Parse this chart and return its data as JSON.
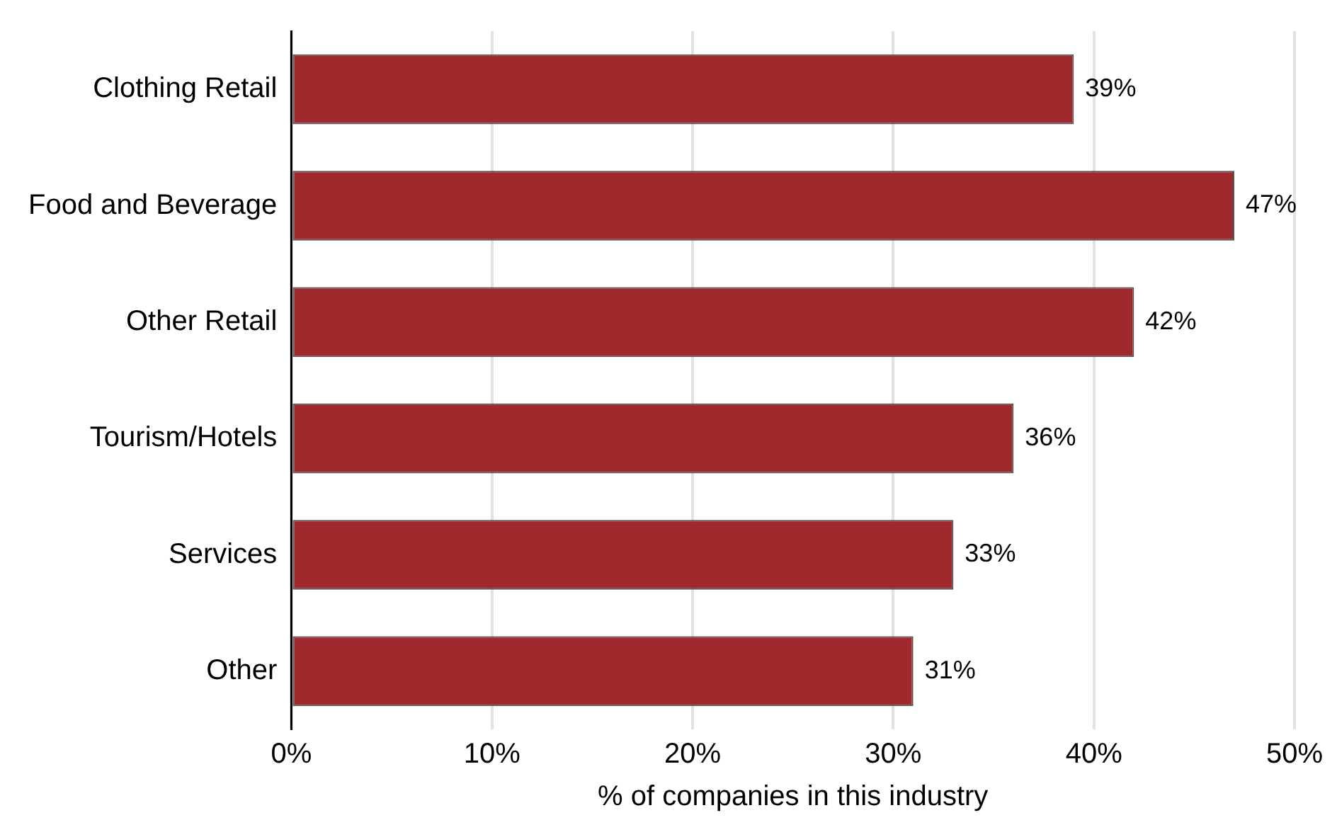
{
  "chart_data": {
    "type": "bar",
    "orientation": "horizontal",
    "categories": [
      "Clothing Retail",
      "Food and Beverage",
      "Other Retail",
      "Tourism/Hotels",
      "Services",
      "Other"
    ],
    "values": [
      39,
      47,
      42,
      36,
      33,
      31
    ],
    "value_labels": [
      "39%",
      "47%",
      "42%",
      "36%",
      "33%",
      "31%"
    ],
    "color": "#a0292e",
    "xlabel": "% of companies in this industry",
    "xlim": [
      0,
      50
    ],
    "xticks": [
      {
        "value": 0,
        "label": "0%"
      },
      {
        "value": 10,
        "label": "10%"
      },
      {
        "value": 20,
        "label": "20%"
      },
      {
        "value": 30,
        "label": "30%"
      },
      {
        "value": 40,
        "label": "40%"
      },
      {
        "value": 50,
        "label": "50%"
      }
    ],
    "grid": "x",
    "legend": false
  }
}
